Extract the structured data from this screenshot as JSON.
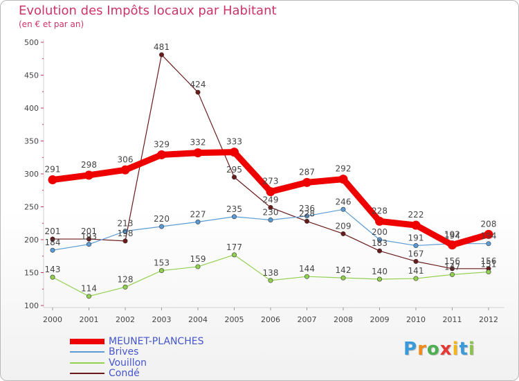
{
  "title": "Evolution des Impôts locaux par Habitant",
  "subtitle": "(en € et par an)",
  "logo": {
    "text": [
      "P",
      "r",
      "o",
      "x",
      "i",
      "t",
      "i"
    ],
    "colors": [
      "#3a9ad9",
      "#f28a1c",
      "#4caf50",
      "#e53935",
      "#f2b51c",
      "#3a9ad9",
      "#8bc34a"
    ]
  },
  "chart_data": {
    "type": "line",
    "categories": [
      "2000",
      "2001",
      "2002",
      "2003",
      "2004",
      "2005",
      "2006",
      "2007",
      "2008",
      "2009",
      "2010",
      "2011",
      "2012"
    ],
    "ylim": [
      100,
      500
    ],
    "yticks": [
      100,
      150,
      200,
      250,
      300,
      350,
      400,
      450,
      500
    ],
    "grid": false,
    "legend_position": "bottom-left",
    "series": [
      {
        "name": "MEUNET-PLANCHES",
        "color": "#ee0000",
        "values": [
          291,
          298,
          306,
          329,
          332,
          333,
          273,
          287,
          292,
          228,
          222,
          192,
          208
        ],
        "labels": [
          "291",
          "298",
          "306",
          "329",
          "332",
          "333",
          "273",
          "287",
          "292",
          "228",
          "222",
          "192",
          "208"
        ]
      },
      {
        "name": "Brives",
        "color": "#5b9bd5",
        "values": [
          184,
          193,
          213,
          220,
          227,
          235,
          230,
          236,
          246,
          200,
          191,
          194,
          194
        ],
        "labels": [
          "184",
          "193",
          "213",
          "220",
          "227",
          "235",
          "230",
          "236",
          "246",
          "200",
          "191",
          "194",
          "194"
        ]
      },
      {
        "name": "Vouillon",
        "color": "#92d050",
        "values": [
          143,
          114,
          128,
          153,
          159,
          177,
          138,
          144,
          142,
          140,
          141,
          147,
          151
        ],
        "labels": [
          "143",
          "114",
          "128",
          "153",
          "159",
          "177",
          "138",
          "144",
          "142",
          "140",
          "141",
          "147",
          "151"
        ]
      },
      {
        "name": "Condé",
        "color": "#6b1a1a",
        "values": [
          201,
          201,
          198,
          481,
          424,
          295,
          249,
          228,
          209,
          183,
          167,
          156,
          156
        ],
        "labels": [
          "201",
          "201",
          "198",
          "481",
          "424",
          "295",
          "249",
          "228",
          "209",
          "183",
          "167",
          "156",
          "156"
        ]
      }
    ]
  }
}
